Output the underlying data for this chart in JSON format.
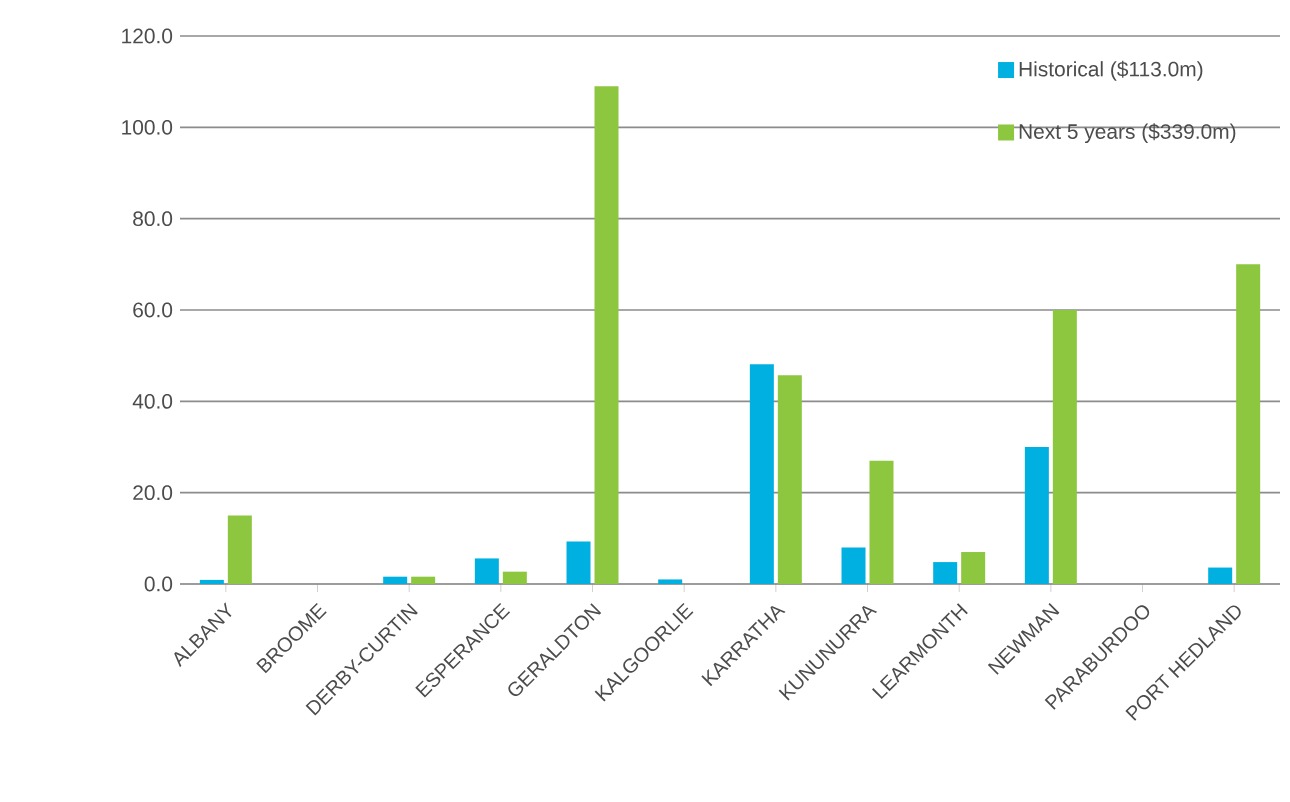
{
  "chart_data": {
    "type": "bar",
    "categories": [
      "ALBANY",
      "BROOME",
      "DERBY-CURTIN",
      "ESPERANCE",
      "GERALDTON",
      "KALGOORLIE",
      "KARRATHA",
      "KUNUNURRA",
      "LEARMONTH",
      "NEWMAN",
      "PARABURDOO",
      "PORT HEDLAND"
    ],
    "series": [
      {
        "name": "Historical ($113.0m)",
        "color": "#00b0e0",
        "values": [
          0.9,
          0,
          1.6,
          5.6,
          9.3,
          1.0,
          48.1,
          8.0,
          4.8,
          30.0,
          0,
          3.6
        ]
      },
      {
        "name": "Next 5 years ($339.0m)",
        "color": "#8dc63f",
        "values": [
          15.0,
          0,
          1.6,
          2.7,
          109.0,
          0,
          45.7,
          27.0,
          7.0,
          60.0,
          0,
          70.0
        ]
      }
    ],
    "ylim": [
      0,
      120
    ],
    "yticks": [
      {
        "value": 0,
        "label": "0.0"
      },
      {
        "value": 20,
        "label": "20.0"
      },
      {
        "value": 40,
        "label": "40.0"
      },
      {
        "value": 60,
        "label": "60.0"
      },
      {
        "value": 80,
        "label": "80.0"
      },
      {
        "value": 100,
        "label": "100.0"
      },
      {
        "value": 120,
        "label": "120.0"
      }
    ],
    "grid": "y",
    "legend": "top right"
  }
}
